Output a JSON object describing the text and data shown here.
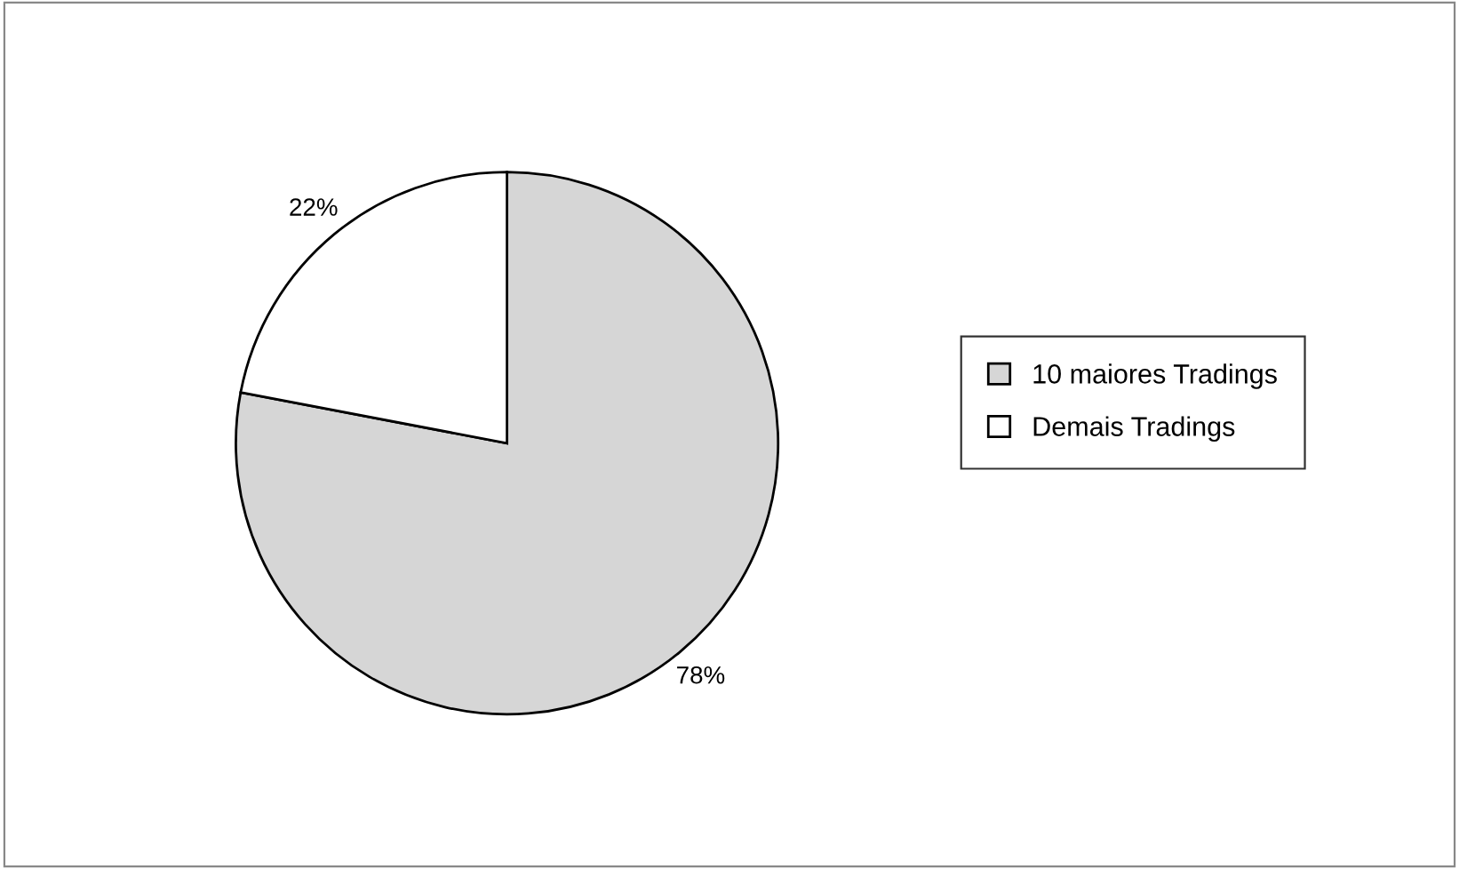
{
  "chart_data": {
    "type": "pie",
    "categories": [
      "10 maiores Tradings",
      "Demais Tradings"
    ],
    "values": [
      78,
      22
    ],
    "colors": [
      "#d6d6d6",
      "#ffffff"
    ],
    "value_labels": [
      "78%",
      "22%"
    ],
    "legend": "right"
  }
}
